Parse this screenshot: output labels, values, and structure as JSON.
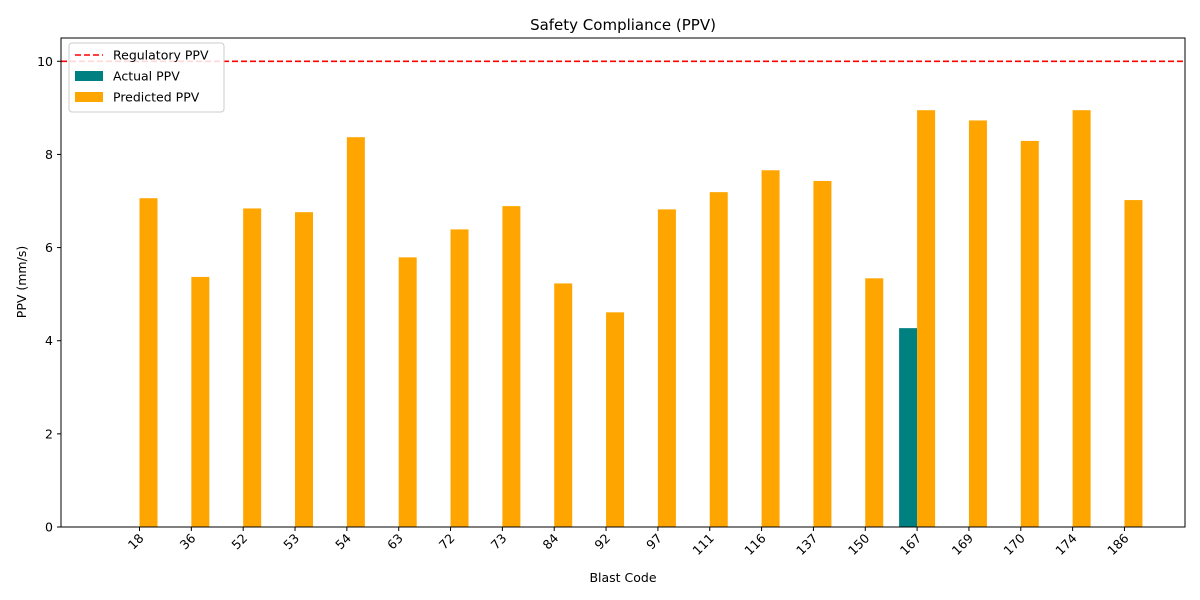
{
  "chart_data": {
    "type": "bar",
    "title": "Safety Compliance (PPV)",
    "xlabel": "Blast Code",
    "ylabel": "PPV (mm/s)",
    "ylim": [
      0,
      10.5
    ],
    "yticks": [
      0,
      2,
      4,
      6,
      8,
      10
    ],
    "categories": [
      "18",
      "36",
      "52",
      "53",
      "54",
      "63",
      "72",
      "73",
      "84",
      "92",
      "97",
      "111",
      "116",
      "137",
      "150",
      "167",
      "169",
      "170",
      "174",
      "186"
    ],
    "series": [
      {
        "name": "Actual PPV",
        "color": "#008080",
        "values": [
          null,
          null,
          null,
          null,
          null,
          null,
          null,
          null,
          null,
          null,
          null,
          null,
          null,
          null,
          null,
          4.27,
          null,
          null,
          null,
          null
        ]
      },
      {
        "name": "Predicted PPV",
        "color": "#ffa500",
        "values": [
          7.06,
          5.37,
          6.84,
          6.76,
          8.37,
          5.79,
          6.39,
          6.89,
          5.23,
          4.61,
          6.82,
          7.19,
          7.66,
          7.43,
          5.34,
          8.95,
          8.73,
          8.29,
          8.95,
          7.02
        ]
      }
    ],
    "reference_line": {
      "name": "Regulatory PPV",
      "value": 10,
      "color": "#ff0000",
      "style": "dashed"
    },
    "legend": {
      "placement": "top-left",
      "entries": [
        "Regulatory PPV",
        "Actual PPV",
        "Predicted PPV"
      ]
    },
    "grid": false
  }
}
